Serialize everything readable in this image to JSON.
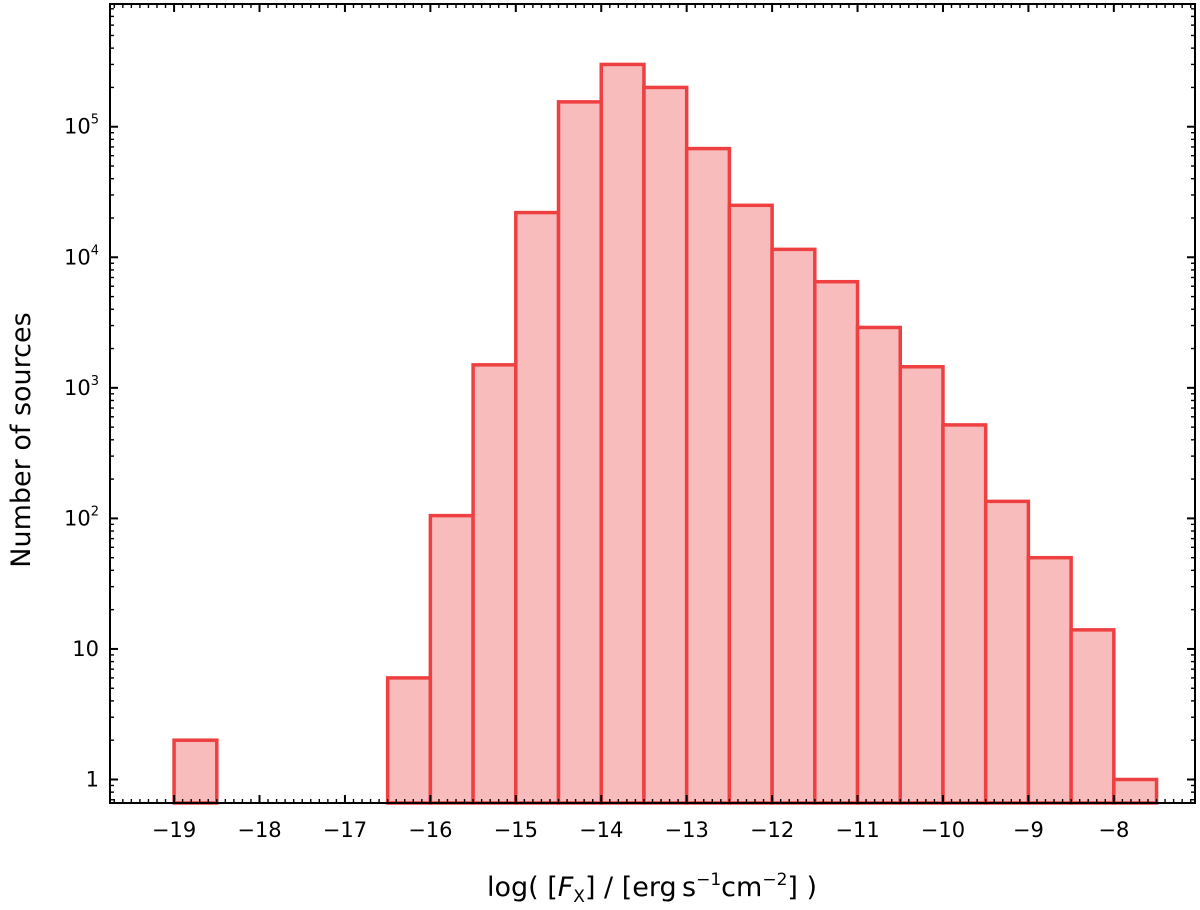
{
  "chart_data": {
    "type": "bar",
    "title": "",
    "xlabel_parts": {
      "prefix": "log( [",
      "var": "F",
      "sub": "X",
      "mid": "] / [erg s",
      "exp1": "−1",
      "cm": "cm",
      "exp2": "−2",
      "suffix": "] )"
    },
    "ylabel": "Number of sources",
    "yscale": "log",
    "bar_color": "#f8bcbc",
    "edge_color": "#ee4040",
    "bin_width": 0.5,
    "xlim": [
      -19.75,
      -7.05
    ],
    "ylim_log10": [
      -0.18,
      5.94
    ],
    "x_ticks": [
      {
        "value": -19,
        "label": "−19"
      },
      {
        "value": -18,
        "label": "−18"
      },
      {
        "value": -17,
        "label": "−17"
      },
      {
        "value": -16,
        "label": "−16"
      },
      {
        "value": -15,
        "label": "−15"
      },
      {
        "value": -14,
        "label": "−14"
      },
      {
        "value": -13,
        "label": "−13"
      },
      {
        "value": -12,
        "label": "−12"
      },
      {
        "value": -11,
        "label": "−11"
      },
      {
        "value": -10,
        "label": "−10"
      },
      {
        "value": -9,
        "label": "−9"
      },
      {
        "value": -8,
        "label": "−8"
      }
    ],
    "y_ticks": [
      {
        "value": 1,
        "base": "1",
        "exp": ""
      },
      {
        "value": 10,
        "base": "10",
        "exp": ""
      },
      {
        "value": 100,
        "base": "10",
        "exp": "2"
      },
      {
        "value": 1000,
        "base": "10",
        "exp": "3"
      },
      {
        "value": 10000,
        "base": "10",
        "exp": "4"
      },
      {
        "value": 100000,
        "base": "10",
        "exp": "5"
      }
    ],
    "bins": [
      {
        "left": -19.0,
        "count": 2
      },
      {
        "left": -16.5,
        "count": 6
      },
      {
        "left": -16.0,
        "count": 105
      },
      {
        "left": -15.5,
        "count": 1500
      },
      {
        "left": -15.0,
        "count": 22000
      },
      {
        "left": -14.5,
        "count": 155000
      },
      {
        "left": -14.0,
        "count": 300000
      },
      {
        "left": -13.5,
        "count": 200000
      },
      {
        "left": -13.0,
        "count": 68000
      },
      {
        "left": -12.5,
        "count": 25000
      },
      {
        "left": -12.0,
        "count": 11500
      },
      {
        "left": -11.5,
        "count": 6500
      },
      {
        "left": -11.0,
        "count": 2900
      },
      {
        "left": -10.5,
        "count": 1450
      },
      {
        "left": -10.0,
        "count": 520
      },
      {
        "left": -9.5,
        "count": 135
      },
      {
        "left": -9.0,
        "count": 50
      },
      {
        "left": -8.5,
        "count": 14
      },
      {
        "left": -8.0,
        "count": 1
      }
    ]
  }
}
